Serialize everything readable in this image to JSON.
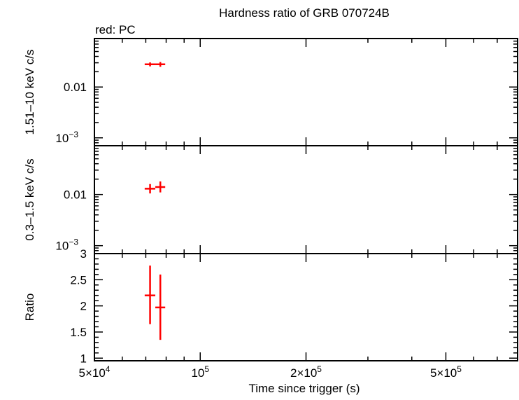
{
  "chart_data": {
    "type": "scatter",
    "title": "Hardness ratio of GRB 070724B",
    "legend_note": "red: PC",
    "x_axis": {
      "label": "Time since trigger (s)",
      "scale": "log",
      "range": [
        50000,
        800000
      ],
      "tick_labels": [
        {
          "value": 50000,
          "mant": "5×10",
          "exp": "4"
        },
        {
          "value": 100000,
          "mant": "10",
          "exp": "5"
        },
        {
          "value": 200000,
          "mant": "2×10",
          "exp": "5"
        },
        {
          "value": 500000,
          "mant": "5×10",
          "exp": "5"
        }
      ]
    },
    "panels": [
      {
        "id": "hard",
        "ylabel": "1.51–10 keV c/s",
        "yscale": "log",
        "ylim": [
          0.0007,
          0.09
        ],
        "tick_labels": [
          {
            "value": 0.001,
            "mant": "10",
            "exp": "−3"
          },
          {
            "value": 0.01,
            "text": "0.01"
          }
        ],
        "points": [
          {
            "x": 72000,
            "y": 0.028,
            "x_err": [
              2500,
              2500
            ],
            "y_err": [
              0.0025,
              0.0025
            ]
          },
          {
            "x": 77000,
            "y": 0.028,
            "x_err": [
              2500,
              2500
            ],
            "y_err": [
              0.003,
              0.003
            ]
          }
        ]
      },
      {
        "id": "soft",
        "ylabel": "0.3–1.5 keV c/s",
        "yscale": "log",
        "ylim": [
          0.0007,
          0.09
        ],
        "tick_labels": [
          {
            "value": 0.001,
            "mant": "10",
            "exp": "−3"
          },
          {
            "value": 0.01,
            "text": "0.01"
          }
        ],
        "points": [
          {
            "x": 72000,
            "y": 0.013,
            "x_err": [
              2500,
              2500
            ],
            "y_err": [
              0.0025,
              0.003
            ]
          },
          {
            "x": 77000,
            "y": 0.014,
            "x_err": [
              2500,
              2500
            ],
            "y_err": [
              0.003,
              0.004
            ]
          }
        ]
      },
      {
        "id": "ratio",
        "ylabel": "Ratio",
        "yscale": "linear",
        "ylim": [
          0.95,
          3.0
        ],
        "tick_labels": [
          {
            "value": 1,
            "text": "1"
          },
          {
            "value": 1.5,
            "text": "1.5"
          },
          {
            "value": 2,
            "text": "2"
          },
          {
            "value": 2.5,
            "text": "2.5"
          },
          {
            "value": 3,
            "text": "3"
          }
        ],
        "points": [
          {
            "x": 72000,
            "y": 2.2,
            "x_err": [
              2500,
              2500
            ],
            "y_err": [
              0.55,
              0.57
            ]
          },
          {
            "x": 77000,
            "y": 1.97,
            "x_err": [
              2500,
              2500
            ],
            "y_err": [
              0.62,
              0.63
            ]
          }
        ]
      }
    ],
    "colors": {
      "data": "#ff0000",
      "axes": "#000000",
      "background": "#ffffff"
    }
  }
}
